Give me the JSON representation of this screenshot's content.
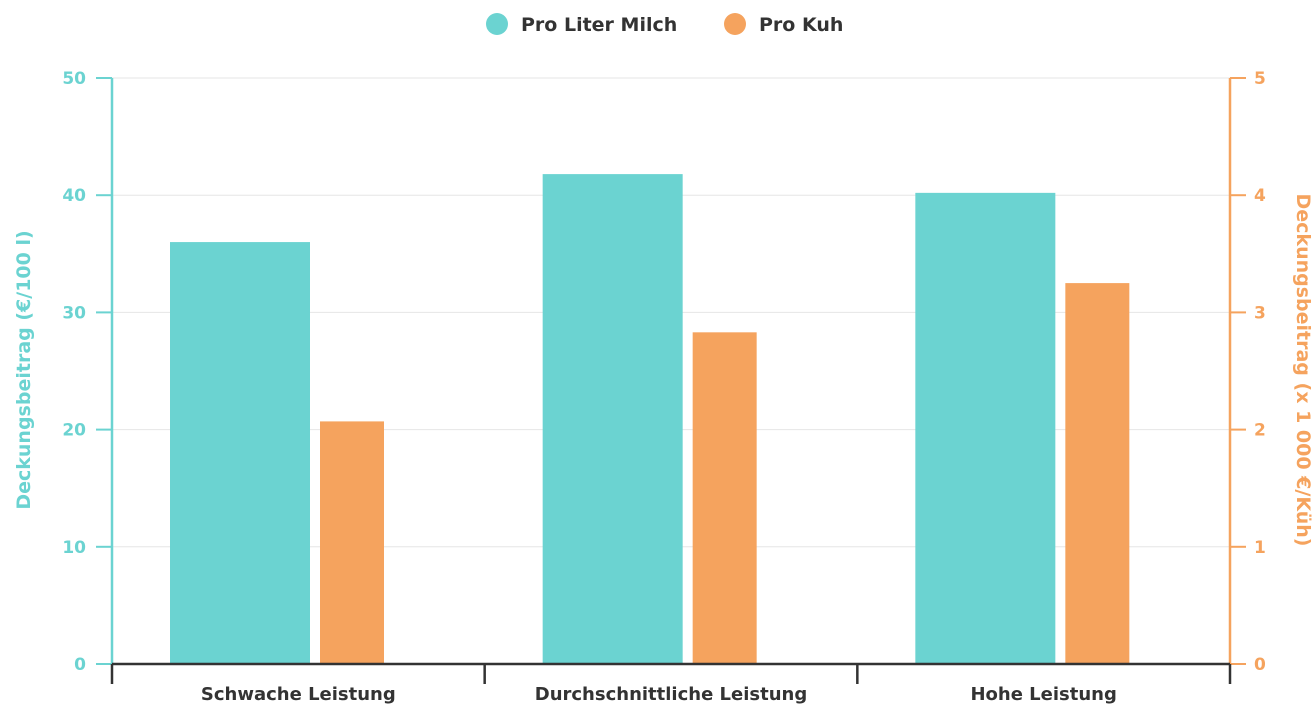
{
  "chart_data": {
    "type": "bar",
    "categories": [
      "Schwache Leistung",
      "Durchschnittliche Leistung",
      "Hohe Leistung"
    ],
    "series": [
      {
        "name": "Pro Liter Milch",
        "axis": "left",
        "values": [
          36,
          41.8,
          40.2
        ],
        "color": "#6bd3d1"
      },
      {
        "name": "Pro Kuh",
        "axis": "right",
        "values": [
          2.07,
          2.83,
          3.25
        ],
        "color": "#f5a35e"
      }
    ],
    "left_axis": {
      "label": "Deckungsbeitrag (€/100 l)",
      "ylim": [
        0,
        50
      ],
      "ticks": [
        "0",
        "10",
        "20",
        "30",
        "40",
        "50"
      ],
      "color": "#6bd3d1"
    },
    "right_axis": {
      "label": "Deckungsbeitrag (x 1 000 €/Küh)",
      "ylim": [
        0,
        5
      ],
      "ticks": [
        "0",
        "1",
        "2",
        "3",
        "4",
        "5"
      ],
      "color": "#f5a35e"
    },
    "grid": true,
    "legend_position": "top-center"
  }
}
